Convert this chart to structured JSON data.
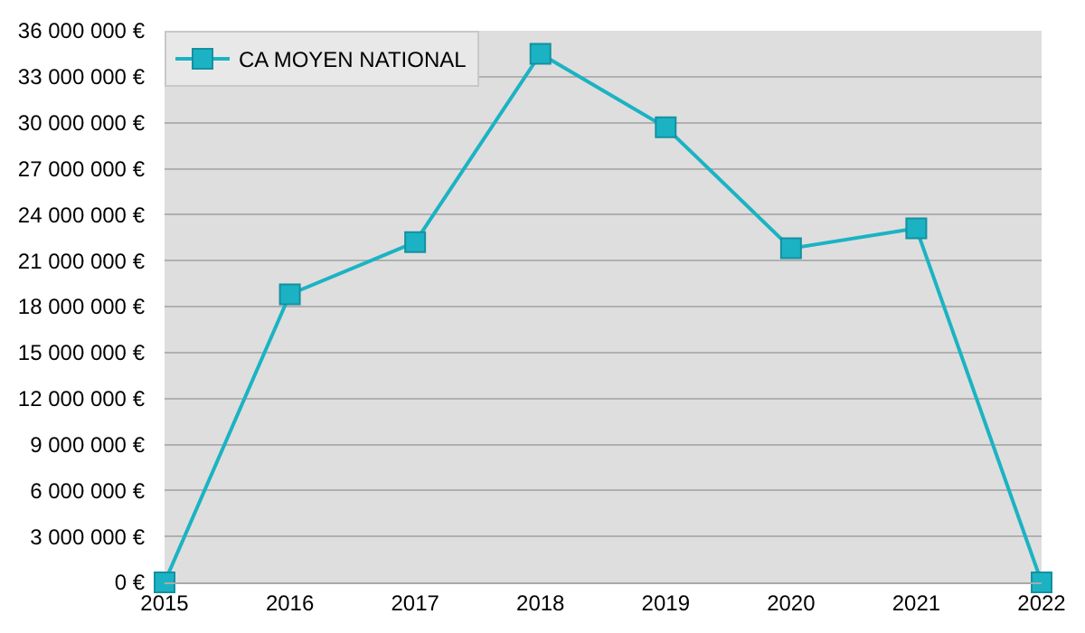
{
  "chart_data": {
    "type": "line",
    "x": [
      2015,
      2016,
      2017,
      2018,
      2019,
      2020,
      2021,
      2022
    ],
    "series": [
      {
        "name": "CA MOYEN NATIONAL",
        "color": "#1bb3c3",
        "values": [
          0,
          18800000,
          22200000,
          34500000,
          29700000,
          21800000,
          23100000,
          0
        ]
      }
    ],
    "xlim": [
      2015,
      2022
    ],
    "xticks": [
      2015,
      2016,
      2017,
      2018,
      2019,
      2020,
      2021,
      2022
    ],
    "ylim": [
      0,
      36000000
    ],
    "yticks": [
      {
        "value": 0,
        "label": "0 €"
      },
      {
        "value": 3000000,
        "label": "3 000 000 €"
      },
      {
        "value": 6000000,
        "label": "6 000 000 €"
      },
      {
        "value": 9000000,
        "label": "9 000 000 €"
      },
      {
        "value": 12000000,
        "label": "12 000 000 €"
      },
      {
        "value": 15000000,
        "label": "15 000 000 €"
      },
      {
        "value": 18000000,
        "label": "18 000 000 €"
      },
      {
        "value": 21000000,
        "label": "21 000 000 €"
      },
      {
        "value": 24000000,
        "label": "24 000 000 €"
      },
      {
        "value": 27000000,
        "label": "27 000 000 €"
      },
      {
        "value": 30000000,
        "label": "30 000 000 €"
      },
      {
        "value": 33000000,
        "label": "33 000 000 €"
      },
      {
        "value": 36000000,
        "label": "36 000 000 €"
      }
    ],
    "grid": "y",
    "legend": "top left",
    "marker": "square",
    "line_style": "solid"
  }
}
